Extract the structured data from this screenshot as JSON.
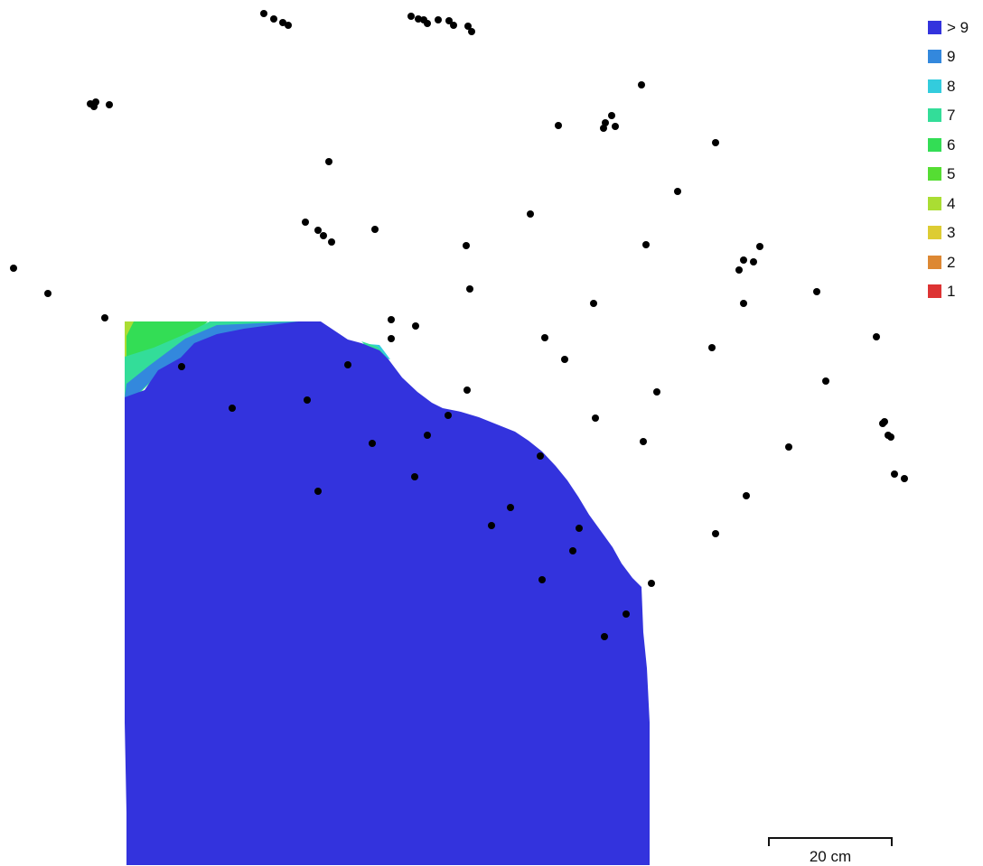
{
  "legend": {
    "items": [
      {
        "label": "> 9",
        "color": "#3333dd"
      },
      {
        "label": "9",
        "color": "#3388dd"
      },
      {
        "label": "8",
        "color": "#33ccdd"
      },
      {
        "label": "7",
        "color": "#33dd99"
      },
      {
        "label": "6",
        "color": "#33dd55"
      },
      {
        "label": "5",
        "color": "#55dd33"
      },
      {
        "label": "4",
        "color": "#aadd33"
      },
      {
        "label": "3",
        "color": "#ddcc33"
      },
      {
        "label": "2",
        "color": "#dd8833"
      },
      {
        "label": "1",
        "color": "#dd3333"
      }
    ]
  },
  "scale_bar": {
    "label": "20 cm"
  },
  "colors": {
    "point": "#000000",
    "coverage_high": "#3333dd"
  }
}
